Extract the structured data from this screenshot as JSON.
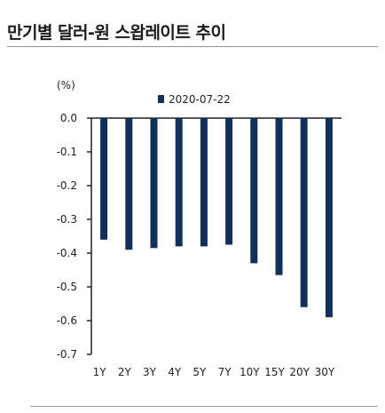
{
  "title": "만기별 달러-원 스왑레이트 추이",
  "unit": "(%)",
  "colors": {
    "bar": "#12305a",
    "axis": "#222222",
    "rule": "#9a9a9a"
  },
  "chart_data": {
    "type": "bar",
    "categories": [
      "1Y",
      "2Y",
      "3Y",
      "4Y",
      "5Y",
      "7Y",
      "10Y",
      "15Y",
      "20Y",
      "30Y"
    ],
    "series": [
      {
        "name": "2020-07-22",
        "values": [
          -0.36,
          -0.39,
          -0.385,
          -0.38,
          -0.38,
          -0.375,
          -0.43,
          -0.465,
          -0.56,
          -0.59
        ]
      }
    ],
    "ylim": [
      -0.7,
      0.0
    ],
    "yticks": [
      0.0,
      -0.1,
      -0.2,
      -0.3,
      -0.4,
      -0.5,
      -0.6,
      -0.7
    ],
    "ytick_labels": [
      "0.0",
      "-0.1",
      "-0.2",
      "-0.3",
      "-0.4",
      "-0.5",
      "-0.6",
      "-0.7"
    ],
    "legend_position": "top-center",
    "grid": false
  }
}
